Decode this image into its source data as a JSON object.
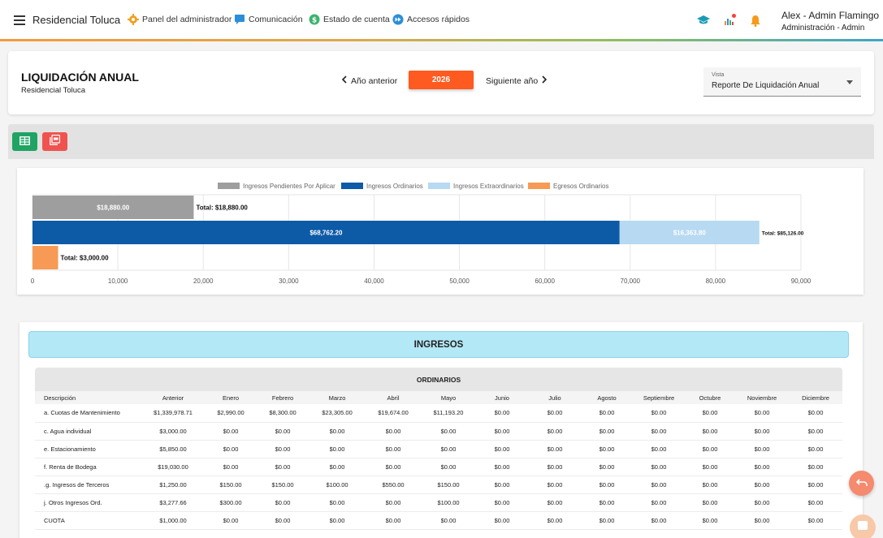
{
  "topbar": {
    "app_title": "Residencial Toluca",
    "nav": [
      {
        "label": "Panel del administrador",
        "icon": "gear-icon",
        "color": "#f0a020"
      },
      {
        "label": "Comunicación",
        "icon": "chat-icon",
        "color": "#2a8fd8"
      },
      {
        "label": "Estado de cuenta",
        "icon": "dollar-icon",
        "color": "#3cb371"
      },
      {
        "label": "Accesos rápidos",
        "icon": "fast-forward-icon",
        "color": "#2a8fd8"
      }
    ],
    "user_name": "Alex - Admin Flamingo",
    "user_role": "Administración - Admin"
  },
  "header": {
    "title": "LIQUIDACIÓN ANUAL",
    "subtitle": "Residencial Toluca",
    "prev_label": "Año anterior",
    "year": "2026",
    "next_label": "Siguiente año",
    "view_label": "Vista",
    "view_value": "Reporte De Liquidación Anual"
  },
  "chart_data": {
    "type": "bar",
    "orientation": "horizontal",
    "stacked": true,
    "legend": [
      {
        "name": "Ingresos Pendientes Por Aplicar",
        "color": "#9e9e9e"
      },
      {
        "name": "Ingresos Ordinarios",
        "color": "#0d5aa7"
      },
      {
        "name": "Ingresos Extraordinarios",
        "color": "#b7d9f2"
      },
      {
        "name": "Egresos Ordinarios",
        "color": "#f79a55"
      }
    ],
    "legend_position": "top",
    "rows": [
      {
        "segments": [
          {
            "series": "Ingresos Pendientes Por Aplicar",
            "value": 18880,
            "label": "$18,880.00"
          }
        ],
        "total_label": "Total: $18,880.00"
      },
      {
        "segments": [
          {
            "series": "Ingresos Ordinarios",
            "value": 68762.2,
            "label": "$68,762.20"
          },
          {
            "series": "Ingresos Extraordinarios",
            "value": 16363.8,
            "label": "$16,363.80"
          }
        ],
        "total_label": "Total: $85,126.00"
      },
      {
        "segments": [
          {
            "series": "Egresos Ordinarios",
            "value": 3000,
            "label": ""
          }
        ],
        "total_label": "Total: $3,000.00"
      }
    ],
    "xlim": [
      0,
      90000
    ],
    "x_ticks": [
      "0",
      "10,000",
      "20,000",
      "30,000",
      "40,000",
      "50,000",
      "60,000",
      "70,000",
      "80,000",
      "90,000"
    ],
    "grid": true
  },
  "ingresos": {
    "banner": "INGRESOS",
    "section": "ORDINARIOS",
    "columns": [
      "Descripción",
      "Anterior",
      "Enero",
      "Febrero",
      "Marzo",
      "Abril",
      "Mayo",
      "Junio",
      "Julio",
      "Agosto",
      "Septiembre",
      "Octubre",
      "Noviembre",
      "Diciembre"
    ],
    "rows": [
      [
        "a. Cuotas de Mantenimiento",
        "$1,339,978.71",
        "$2,990.00",
        "$8,300.00",
        "$23,305.00",
        "$19,674.00",
        "$11,193.20",
        "$0.00",
        "$0.00",
        "$0.00",
        "$0.00",
        "$0.00",
        "$0.00",
        "$0.00"
      ],
      [
        "c. Agua individual",
        "$3,000.00",
        "$0.00",
        "$0.00",
        "$0.00",
        "$0.00",
        "$0.00",
        "$0.00",
        "$0.00",
        "$0.00",
        "$0.00",
        "$0.00",
        "$0.00",
        "$0.00"
      ],
      [
        "e. Estacionamiento",
        "$5,850.00",
        "$0.00",
        "$0.00",
        "$0.00",
        "$0.00",
        "$0.00",
        "$0.00",
        "$0.00",
        "$0.00",
        "$0.00",
        "$0.00",
        "$0.00",
        "$0.00"
      ],
      [
        "f. Renta de Bodega",
        "$19,030.00",
        "$0.00",
        "$0.00",
        "$0.00",
        "$0.00",
        "$0.00",
        "$0.00",
        "$0.00",
        "$0.00",
        "$0.00",
        "$0.00",
        "$0.00",
        "$0.00"
      ],
      [
        ".g. Ingresos de Terceros",
        "$1,250.00",
        "$150.00",
        "$150.00",
        "$100.00",
        "$550.00",
        "$150.00",
        "$0.00",
        "$0.00",
        "$0.00",
        "$0.00",
        "$0.00",
        "$0.00",
        "$0.00"
      ],
      [
        "j. Otros Ingresos Ord.",
        "$3,277.66",
        "$300.00",
        "$0.00",
        "$0.00",
        "$0.00",
        "$100.00",
        "$0.00",
        "$0.00",
        "$0.00",
        "$0.00",
        "$0.00",
        "$0.00",
        "$0.00"
      ],
      [
        "CUOTA",
        "$1,000.00",
        "$0.00",
        "$0.00",
        "$0.00",
        "$0.00",
        "$0.00",
        "$0.00",
        "$0.00",
        "$0.00",
        "$0.00",
        "$0.00",
        "$0.00",
        "$0.00"
      ]
    ]
  }
}
